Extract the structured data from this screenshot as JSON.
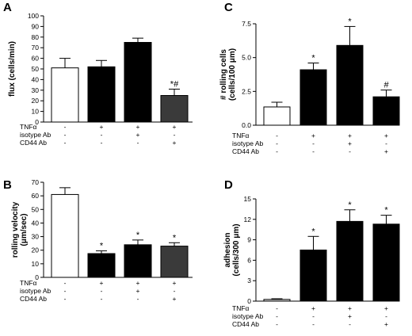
{
  "conditions": [
    {
      "label": "TNFα",
      "marks": [
        "-",
        "+",
        "+",
        "+"
      ]
    },
    {
      "label": "isotype Ab",
      "marks": [
        "-",
        "-",
        "+",
        "-"
      ]
    },
    {
      "label": "CD44 Ab",
      "marks": [
        "-",
        "-",
        "-",
        "+"
      ]
    }
  ],
  "bar_colors": [
    "#ffffff",
    "#000000",
    "#000000",
    "#3a3a3a"
  ],
  "chart_data": [
    {
      "panel": "A",
      "type": "bar",
      "ylabel": "flux (cells/min)",
      "ylim": [
        0,
        100
      ],
      "yticks": [
        0,
        10,
        20,
        30,
        40,
        50,
        60,
        70,
        80,
        90,
        100
      ],
      "values": [
        51,
        52,
        75,
        25
      ],
      "errors": [
        9,
        6,
        4,
        6
      ],
      "annotations": [
        "",
        "",
        "",
        "*#"
      ],
      "bar_colors": [
        "#ffffff",
        "#000000",
        "#000000",
        "#3a3a3a"
      ]
    },
    {
      "panel": "B",
      "type": "bar",
      "ylabel": "rolling velocity (μm/sec)",
      "ylim": [
        0,
        70
      ],
      "yticks": [
        0,
        10,
        20,
        30,
        40,
        50,
        60,
        70
      ],
      "values": [
        61,
        17.5,
        24,
        23
      ],
      "errors": [
        5,
        2,
        3.5,
        2.5
      ],
      "annotations": [
        "",
        "*",
        "*",
        "*"
      ],
      "bar_colors": [
        "#ffffff",
        "#000000",
        "#000000",
        "#3a3a3a"
      ]
    },
    {
      "panel": "C",
      "type": "bar",
      "ylabel": "# rolling cells (cells/100 μm)",
      "ylim": [
        0,
        7.5
      ],
      "yticks": [
        0.0,
        2.5,
        5.0,
        7.5
      ],
      "ytick_labels": [
        "0.0",
        "2.5",
        "5.0",
        "7.5"
      ],
      "values": [
        1.35,
        4.1,
        5.9,
        2.1
      ],
      "errors": [
        0.35,
        0.5,
        1.4,
        0.5
      ],
      "annotations": [
        "",
        "*",
        "*",
        "#"
      ],
      "bar_colors": [
        "#ffffff",
        "#000000",
        "#000000",
        "#000000"
      ]
    },
    {
      "panel": "D",
      "type": "bar",
      "ylabel": "adhesion (cells/300 μm)",
      "ylim": [
        0,
        15
      ],
      "yticks": [
        0,
        3,
        6,
        9,
        12,
        15
      ],
      "values": [
        0.25,
        7.5,
        11.7,
        11.3
      ],
      "errors": [
        0.1,
        2,
        1.7,
        1.3
      ],
      "annotations": [
        "",
        "*",
        "*",
        "*"
      ],
      "bar_colors": [
        "#d9d9d9",
        "#000000",
        "#000000",
        "#000000"
      ]
    }
  ]
}
